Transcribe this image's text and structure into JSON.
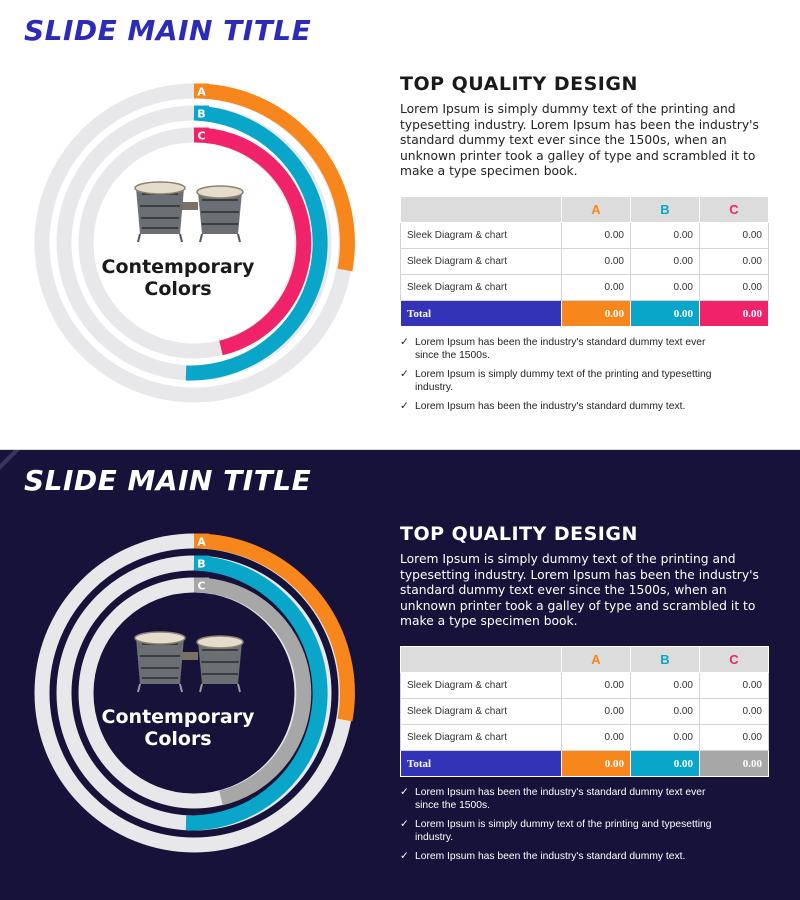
{
  "colors": {
    "title_light": "#2b2bb8",
    "dark_bg": "#171239",
    "ring_a": "#f7861c",
    "ring_b": "#0aa6c9",
    "ring_c_light": "#f0226a",
    "ring_c_dark": "#a7a7a7",
    "track": "#e8e7ea",
    "total_label_bg": "#3333b8"
  },
  "slides": [
    {
      "theme": "light",
      "title": "SLIDE MAIN TITLE",
      "center_label_line1": "Contemporary",
      "center_label_line2": "Colors",
      "ring_labels": [
        "A",
        "B",
        "C"
      ],
      "image": "bongo-drums-icon",
      "heading": "TOP QUALITY DESIGN",
      "description": "Lorem Ipsum is simply dummy text of the printing and typesetting industry. Lorem Ipsum has been the industry's standard dummy text ever since the 1500s, when an unknown printer took a galley of type and scrambled it to make a type specimen book.",
      "table": {
        "headers": [
          "",
          "A",
          "B",
          "C"
        ],
        "rows": [
          {
            "label": "Sleek Diagram & chart",
            "a": "0.00",
            "b": "0.00",
            "c": "0.00"
          },
          {
            "label": "Sleek Diagram & chart",
            "a": "0.00",
            "b": "0.00",
            "c": "0.00"
          },
          {
            "label": "Sleek Diagram & chart",
            "a": "0.00",
            "b": "0.00",
            "c": "0.00"
          }
        ],
        "total": {
          "label": "Total",
          "a": "0.00",
          "b": "0.00",
          "c": "0.00"
        }
      },
      "bullets": [
        "Lorem Ipsum has been the industry's standard dummy text ever since the 1500s.",
        "Lorem Ipsum is simply dummy text of the printing and typesetting industry.",
        "Lorem Ipsum has been the industry's standard dummy text."
      ]
    },
    {
      "theme": "dark",
      "title": "SLIDE MAIN TITLE",
      "center_label_line1": "Contemporary",
      "center_label_line2": "Colors",
      "ring_labels": [
        "A",
        "B",
        "C"
      ],
      "image": "bongo-drums-icon",
      "heading": "TOP QUALITY DESIGN",
      "description": "Lorem Ipsum is simply dummy text of the printing and typesetting industry. Lorem Ipsum has been the industry's standard dummy text ever since the 1500s, when an unknown printer took a galley of type and scrambled it to make a type specimen book.",
      "table": {
        "headers": [
          "",
          "A",
          "B",
          "C"
        ],
        "rows": [
          {
            "label": "Sleek Diagram & chart",
            "a": "0.00",
            "b": "0.00",
            "c": "0.00"
          },
          {
            "label": "Sleek Diagram & chart",
            "a": "0.00",
            "b": "0.00",
            "c": "0.00"
          },
          {
            "label": "Sleek Diagram & chart",
            "a": "0.00",
            "b": "0.00",
            "c": "0.00"
          }
        ],
        "total": {
          "label": "Total",
          "a": "0.00",
          "b": "0.00",
          "c": "0.00"
        }
      },
      "bullets": [
        "Lorem Ipsum has been the industry's standard dummy text ever since the 1500s.",
        "Lorem Ipsum is simply dummy text of the printing and typesetting industry.",
        "Lorem Ipsum has been the industry's standard dummy text."
      ]
    }
  ]
}
